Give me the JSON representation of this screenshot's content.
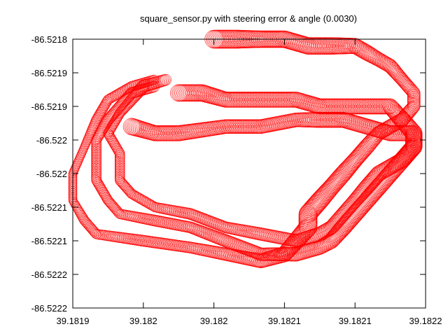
{
  "colors": {
    "series": "#ff0000",
    "axes": "#000000",
    "background": "#ffffff"
  },
  "chart_data": {
    "type": "scatter",
    "title": "square_sensor.py with steering error & angle (0.0030)",
    "xlabel": "",
    "ylabel": "",
    "grid": false,
    "legend": "none",
    "xlim": [
      39.1819,
      39.1822
    ],
    "ylim": [
      -86.5222,
      -86.5218
    ],
    "x_ticks": [
      {
        "value": 39.1819,
        "label": "39.1819"
      },
      {
        "value": 39.18196,
        "label": "39.182"
      },
      {
        "value": 39.18202,
        "label": "39.182"
      },
      {
        "value": 39.18208,
        "label": "39.1821"
      },
      {
        "value": 39.18214,
        "label": "39.1821"
      },
      {
        "value": 39.1822,
        "label": "39.1822"
      }
    ],
    "y_ticks": [
      {
        "value": -86.5218,
        "label": "-86.5218"
      },
      {
        "value": -86.52185,
        "label": "-86.5219"
      },
      {
        "value": -86.5219,
        "label": "-86.5219"
      },
      {
        "value": -86.52195,
        "label": "-86.522"
      },
      {
        "value": -86.522,
        "label": "-86.522"
      },
      {
        "value": -86.52205,
        "label": "-86.5221"
      },
      {
        "value": -86.5221,
        "label": "-86.5221"
      },
      {
        "value": -86.52215,
        "label": "-86.5222"
      },
      {
        "value": -86.5222,
        "label": "-86.5222"
      }
    ],
    "series": [
      {
        "marker": "circle",
        "comment_size": "marker radius proportional to steering error",
        "points": [
          [
            39.18202,
            -86.5218,
            13
          ],
          [
            39.18204,
            -86.5218,
            13
          ],
          [
            39.18206,
            -86.5218,
            12
          ],
          [
            39.18208,
            -86.5218,
            12
          ],
          [
            39.1821,
            -86.52181,
            12
          ],
          [
            39.18212,
            -86.52181,
            12
          ],
          [
            39.18214,
            -86.52181,
            11
          ],
          [
            39.18215,
            -86.52182,
            11
          ],
          [
            39.18216,
            -86.52183,
            10
          ],
          [
            39.18217,
            -86.52184,
            10
          ],
          [
            39.18218,
            -86.52186,
            9
          ],
          [
            39.18219,
            -86.52188,
            9
          ],
          [
            39.18219,
            -86.5219,
            9
          ],
          [
            39.18218,
            -86.52192,
            10
          ],
          [
            39.18216,
            -86.52194,
            10
          ],
          [
            39.18215,
            -86.52196,
            11
          ],
          [
            39.18214,
            -86.52198,
            11
          ],
          [
            39.18213,
            -86.522,
            12
          ],
          [
            39.18212,
            -86.52202,
            12
          ],
          [
            39.18211,
            -86.52204,
            13
          ],
          [
            39.1821,
            -86.52206,
            13
          ],
          [
            39.1821,
            -86.52208,
            13
          ],
          [
            39.18209,
            -86.5221,
            12
          ],
          [
            39.18208,
            -86.52212,
            11
          ],
          [
            39.18206,
            -86.52213,
            10
          ],
          [
            39.18203,
            -86.52212,
            9
          ],
          [
            39.182,
            -86.52211,
            8
          ],
          [
            39.18196,
            -86.5221,
            8
          ],
          [
            39.18192,
            -86.52209,
            7
          ],
          [
            39.18191,
            -86.52207,
            7
          ],
          [
            39.1819,
            -86.52204,
            6
          ],
          [
            39.1819,
            -86.522,
            6
          ],
          [
            39.18191,
            -86.52196,
            6
          ],
          [
            39.18192,
            -86.52192,
            7
          ],
          [
            39.18193,
            -86.52189,
            7
          ],
          [
            39.18195,
            -86.52187,
            7
          ],
          [
            39.18197,
            -86.52186,
            7
          ]
        ]
      },
      {
        "marker": "circle",
        "points": [
          [
            39.18199,
            -86.52188,
            12
          ],
          [
            39.18201,
            -86.52188,
            12
          ],
          [
            39.18203,
            -86.52189,
            11
          ],
          [
            39.18205,
            -86.52189,
            11
          ],
          [
            39.18207,
            -86.52189,
            11
          ],
          [
            39.18209,
            -86.52189,
            11
          ],
          [
            39.18211,
            -86.5219,
            11
          ],
          [
            39.18213,
            -86.5219,
            11
          ],
          [
            39.18215,
            -86.5219,
            11
          ],
          [
            39.18217,
            -86.5219,
            11
          ],
          [
            39.18218,
            -86.52192,
            12
          ],
          [
            39.18219,
            -86.52194,
            12
          ],
          [
            39.18219,
            -86.52196,
            12
          ],
          [
            39.18218,
            -86.52198,
            12
          ],
          [
            39.18217,
            -86.522,
            12
          ],
          [
            39.18216,
            -86.52202,
            12
          ],
          [
            39.18215,
            -86.52204,
            12
          ],
          [
            39.18214,
            -86.52206,
            12
          ],
          [
            39.18213,
            -86.52208,
            12
          ],
          [
            39.18212,
            -86.5221,
            11
          ],
          [
            39.18211,
            -86.52211,
            10
          ],
          [
            39.18209,
            -86.52212,
            10
          ],
          [
            39.18206,
            -86.52212,
            9
          ],
          [
            39.18203,
            -86.5221,
            9
          ],
          [
            39.182,
            -86.52208,
            8
          ],
          [
            39.18197,
            -86.52207,
            8
          ],
          [
            39.18194,
            -86.52206,
            7
          ],
          [
            39.18193,
            -86.52204,
            7
          ],
          [
            39.18192,
            -86.52201,
            7
          ],
          [
            39.18192,
            -86.52198,
            7
          ],
          [
            39.18192,
            -86.52195,
            7
          ],
          [
            39.18193,
            -86.52192,
            8
          ],
          [
            39.18194,
            -86.5219,
            8
          ],
          [
            39.18195,
            -86.52188,
            8
          ],
          [
            39.18197,
            -86.52187,
            8
          ]
        ]
      },
      {
        "marker": "circle",
        "points": [
          [
            39.18195,
            -86.52193,
            12
          ],
          [
            39.18197,
            -86.52194,
            11
          ],
          [
            39.18199,
            -86.52194,
            11
          ],
          [
            39.18203,
            -86.52193,
            10
          ],
          [
            39.18206,
            -86.52193,
            10
          ],
          [
            39.18209,
            -86.52192,
            10
          ],
          [
            39.18211,
            -86.52192,
            11
          ],
          [
            39.18213,
            -86.52192,
            11
          ],
          [
            39.18215,
            -86.52193,
            11
          ],
          [
            39.18217,
            -86.52194,
            11
          ],
          [
            39.18219,
            -86.52194,
            11
          ],
          [
            39.18219,
            -86.52196,
            11
          ],
          [
            39.18218,
            -86.52198,
            11
          ],
          [
            39.18216,
            -86.522,
            11
          ],
          [
            39.18215,
            -86.52202,
            11
          ],
          [
            39.18214,
            -86.52204,
            10
          ],
          [
            39.18213,
            -86.52206,
            10
          ],
          [
            39.18212,
            -86.52208,
            10
          ],
          [
            39.18211,
            -86.52209,
            10
          ],
          [
            39.18209,
            -86.5221,
            9
          ],
          [
            39.18206,
            -86.52209,
            9
          ],
          [
            39.18203,
            -86.52208,
            8
          ],
          [
            39.182,
            -86.52206,
            8
          ],
          [
            39.18197,
            -86.52205,
            7
          ],
          [
            39.18195,
            -86.52203,
            7
          ],
          [
            39.18194,
            -86.52201,
            7
          ],
          [
            39.18194,
            -86.52199,
            7
          ],
          [
            39.18194,
            -86.52197,
            7
          ],
          [
            39.18193,
            -86.52194,
            7
          ],
          [
            39.18194,
            -86.52191,
            7
          ],
          [
            39.18195,
            -86.52189,
            8
          ],
          [
            39.18196,
            -86.52187,
            9
          ],
          [
            39.18198,
            -86.52186,
            8
          ]
        ]
      }
    ]
  }
}
